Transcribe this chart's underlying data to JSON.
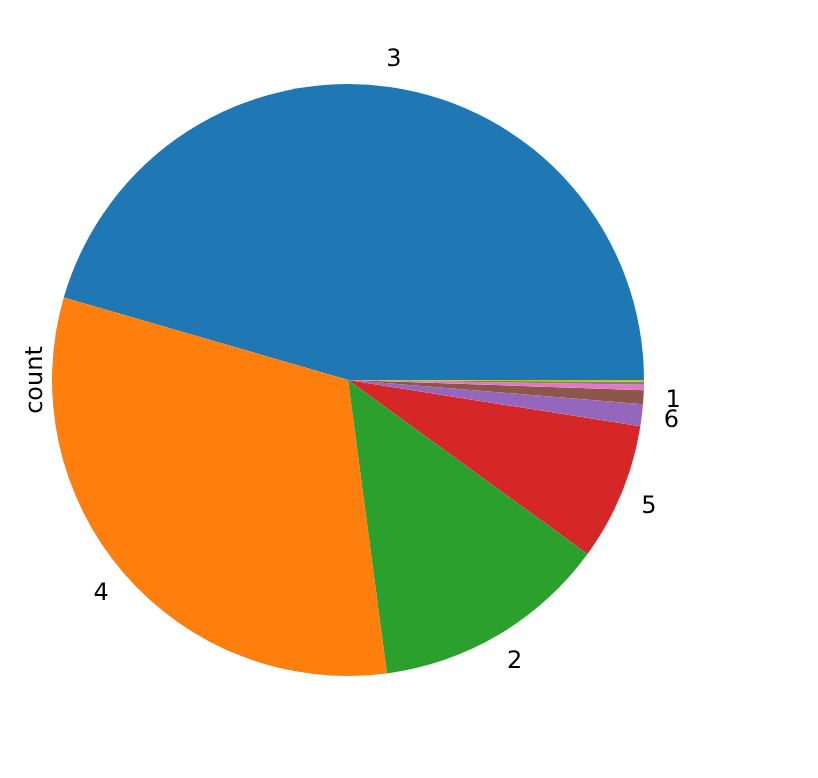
{
  "chart_data": {
    "type": "pie",
    "ylabel": "count",
    "categories": [
      "3",
      "4",
      "2",
      "5",
      "6",
      "1",
      null,
      null,
      null
    ],
    "values": [
      45.5,
      31.6,
      12.9,
      7.5,
      1.2,
      0.75,
      0.3,
      0.15,
      0.1
    ],
    "colors": [
      "#1f77b4",
      "#ff7f0e",
      "#2ca02c",
      "#d62728",
      "#9467bd",
      "#8c564b",
      "#e377c2",
      "#7f7f7f",
      "#bcbd22"
    ]
  }
}
